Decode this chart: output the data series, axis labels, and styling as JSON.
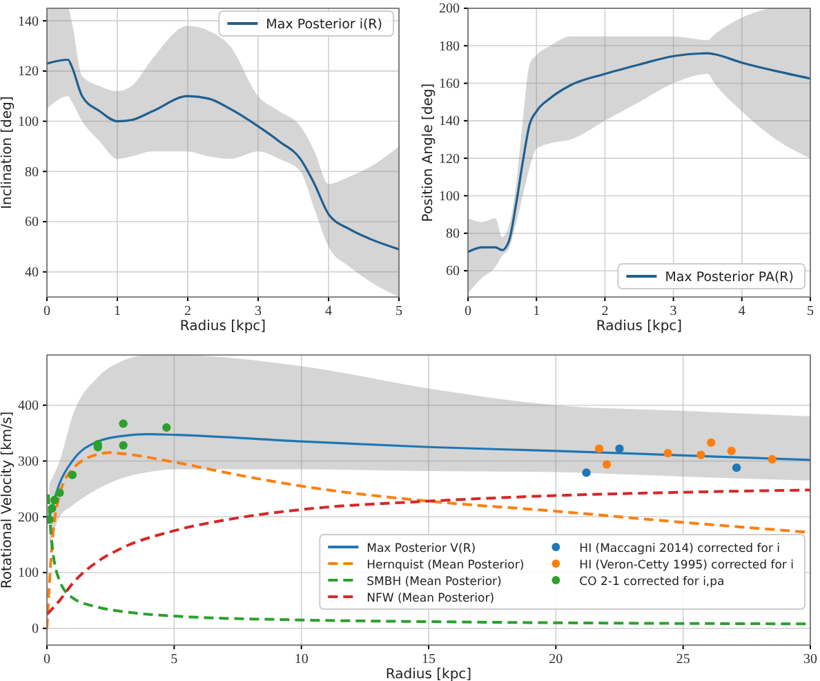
{
  "chart_data": [
    {
      "type": "line",
      "xlabel": "Radius [kpc]",
      "ylabel": "Inclination [deg]",
      "xlim": [
        0,
        5
      ],
      "xticks": [
        0,
        1,
        2,
        3,
        4,
        5
      ],
      "ylim": [
        30,
        145
      ],
      "yticks": [
        40,
        60,
        80,
        100,
        120,
        140
      ],
      "grid": true,
      "legend": "top right",
      "series": [
        {
          "name": "Max Posterior i(R)",
          "color": "#1f5f8f",
          "x": [
            0,
            0.3,
            0.35,
            0.5,
            0.75,
            1,
            1.2,
            1.5,
            2,
            2.3,
            2.6,
            3,
            3.3,
            3.6,
            3.8,
            4,
            4.3,
            4.6,
            5
          ],
          "values": [
            123,
            124.5,
            122,
            110,
            104,
            100,
            100.5,
            104,
            110,
            109,
            105,
            98,
            92,
            85,
            75,
            63,
            57,
            53,
            49
          ],
          "lower": [
            105,
            110,
            108,
            100,
            92,
            85,
            86,
            88,
            88,
            86,
            85,
            88,
            85,
            80,
            65,
            50,
            42,
            36,
            30
          ],
          "upper": [
            145,
            145,
            140,
            118,
            114,
            112,
            114,
            125,
            138,
            136,
            130,
            110,
            104,
            98,
            88,
            75,
            78,
            82,
            90
          ]
        }
      ]
    },
    {
      "type": "line",
      "xlabel": "Radius [kpc]",
      "ylabel": "Position Angle [deg]",
      "xlim": [
        0,
        5
      ],
      "xticks": [
        0,
        1,
        2,
        3,
        4,
        5
      ],
      "ylim": [
        46,
        200
      ],
      "yticks": [
        60,
        80,
        100,
        120,
        140,
        160,
        180,
        200
      ],
      "grid": true,
      "legend": "bottom right",
      "series": [
        {
          "name": "Max Posterior PA(R)",
          "color": "#1f5f8f",
          "x": [
            0,
            0.2,
            0.4,
            0.5,
            0.6,
            0.7,
            0.8,
            0.9,
            1,
            1.2,
            1.5,
            2,
            2.5,
            3,
            3.5,
            3.6,
            4,
            4.5,
            5
          ],
          "values": [
            70,
            72.5,
            72.5,
            71,
            76,
            95,
            118,
            138,
            145,
            152,
            159,
            165,
            170,
            174.5,
            176,
            175.5,
            171,
            166.5,
            162.5
          ],
          "lower": [
            48,
            56,
            62,
            68,
            72,
            85,
            100,
            115,
            125,
            128,
            130,
            140,
            150,
            160,
            165,
            160,
            145,
            130,
            120
          ],
          "upper": [
            88,
            86,
            88,
            78,
            84,
            105,
            140,
            170,
            175,
            180,
            185,
            185,
            185,
            185,
            183,
            186,
            195,
            200,
            200
          ]
        }
      ]
    },
    {
      "type": "line",
      "xlabel": "Radius [kpc]",
      "ylabel": "Rotational Velocity [km/s]",
      "xlim": [
        0,
        30
      ],
      "xticks": [
        0,
        5,
        10,
        15,
        20,
        25,
        30
      ],
      "ylim": [
        -30,
        490
      ],
      "yticks": [
        0,
        100,
        200,
        300,
        400
      ],
      "grid": true,
      "legend": "bottom right",
      "series": [
        {
          "name": "Max  Posterior V(R)",
          "color": "#1f77b4",
          "x": [
            0.1,
            0.5,
            1,
            2,
            3,
            4,
            5,
            10,
            15,
            20,
            25,
            30
          ],
          "values": [
            200,
            260,
            300,
            335,
            345,
            348,
            347,
            335,
            325,
            318,
            310,
            302
          ],
          "lower": [
            150,
            200,
            220,
            250,
            270,
            280,
            285,
            285,
            282,
            280,
            272,
            265
          ],
          "upper": [
            260,
            300,
            380,
            450,
            480,
            490,
            490,
            470,
            430,
            400,
            390,
            380
          ]
        },
        {
          "name": "Hernquist (Mean Posterior)",
          "color": "#ff7f0e",
          "line_style": "dashed",
          "x": [
            0,
            0.2,
            0.5,
            1,
            2,
            2.5,
            3,
            5,
            7.5,
            10,
            15,
            20,
            25,
            30
          ],
          "values": [
            0,
            150,
            240,
            285,
            312,
            315,
            313,
            298,
            275,
            255,
            228,
            210,
            190,
            172
          ]
        },
        {
          "name": "SMBH (Mean Posterior)",
          "color": "#2ca02c",
          "line_style": "dashed",
          "x": [
            0.05,
            0.2,
            0.5,
            1,
            2,
            3,
            5,
            10,
            15,
            20,
            30
          ],
          "values": [
            240,
            150,
            85,
            55,
            38,
            30,
            22,
            15,
            12,
            10,
            8
          ]
        },
        {
          "name": "NFW (Mean Posterior)",
          "color": "#d62728",
          "line_style": "dashed",
          "x": [
            0,
            0.5,
            1,
            2,
            3,
            5,
            7.5,
            10,
            15,
            20,
            25,
            30
          ],
          "values": [
            25,
            50,
            80,
            120,
            145,
            175,
            198,
            213,
            228,
            238,
            244,
            248
          ]
        },
        {
          "name": "HI (Maccagni 2014) corrected for i",
          "type": "scatter",
          "marker": "circle",
          "color": "#1f77b4",
          "x": [
            21.2,
            22.5,
            27.1
          ],
          "values": [
            279,
            322,
            288
          ]
        },
        {
          "name": "HI (Veron-Cetty 1995) corrected for i",
          "type": "scatter",
          "marker": "circle",
          "color": "#ff7f0e",
          "x": [
            21.7,
            22.0,
            24.4,
            25.7,
            26.1,
            26.9,
            28.5
          ],
          "values": [
            322,
            294,
            314,
            311,
            333,
            318,
            303
          ]
        },
        {
          "name": "CO 2-1 corrected for i,pa",
          "type": "scatter",
          "marker": "circle",
          "color": "#2ca02c",
          "x": [
            0.1,
            0.2,
            0.3,
            0.5,
            1.0,
            2.0,
            2.0,
            3.0,
            3.0,
            4.7
          ],
          "values": [
            195,
            215,
            230,
            243,
            275,
            330,
            325,
            367,
            328,
            360
          ]
        }
      ]
    }
  ]
}
